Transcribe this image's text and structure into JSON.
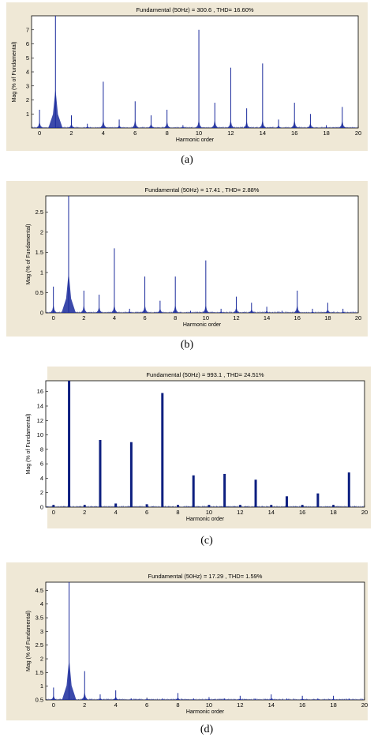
{
  "chart_data": [
    {
      "type": "bar",
      "title": "Fundamental (50Hz) = 300.6 , THD= 16.60%",
      "xlabel": "Harmonic order",
      "ylabel": "Mag (% of Fundamental)",
      "caption": "(a)",
      "xlim": [
        -0.5,
        20
      ],
      "ylim": [
        0,
        8
      ],
      "xticks": [
        "0",
        "2",
        "4",
        "6",
        "8",
        "10",
        "12",
        "14",
        "16",
        "18",
        "20"
      ],
      "yticks": [
        "1",
        "2",
        "3",
        "4",
        "5",
        "6",
        "7"
      ],
      "bar_color": "#1a2a9c",
      "harmonics": [
        {
          "order": 0,
          "value": 1.3
        },
        {
          "order": 1,
          "value": 8.0
        },
        {
          "order": 2,
          "value": 0.9
        },
        {
          "order": 3,
          "value": 0.3
        },
        {
          "order": 4,
          "value": 3.3
        },
        {
          "order": 5,
          "value": 0.6
        },
        {
          "order": 6,
          "value": 1.9
        },
        {
          "order": 7,
          "value": 0.9
        },
        {
          "order": 8,
          "value": 1.3
        },
        {
          "order": 9,
          "value": 0.2
        },
        {
          "order": 10,
          "value": 7.0
        },
        {
          "order": 11,
          "value": 1.8
        },
        {
          "order": 12,
          "value": 4.3
        },
        {
          "order": 13,
          "value": 1.4
        },
        {
          "order": 14,
          "value": 4.6
        },
        {
          "order": 15,
          "value": 0.6
        },
        {
          "order": 16,
          "value": 1.8
        },
        {
          "order": 17,
          "value": 1.0
        },
        {
          "order": 18,
          "value": 0.2
        },
        {
          "order": 19,
          "value": 1.5
        }
      ]
    },
    {
      "type": "bar",
      "title": "Fundamental (50Hz) = 17.41 , THD= 2.88%",
      "xlabel": "Harmonic order",
      "ylabel": "Mag (% of Fundamental)",
      "caption": "(b)",
      "xlim": [
        -0.5,
        20
      ],
      "ylim": [
        0,
        2.9
      ],
      "xticks": [
        "0",
        "2",
        "4",
        "6",
        "8",
        "10",
        "12",
        "14",
        "16",
        "18",
        "20"
      ],
      "yticks": [
        "0",
        "0.5",
        "1",
        "1.5",
        "2",
        "2.5"
      ],
      "bar_color": "#1a2a9c",
      "harmonics": [
        {
          "order": 0,
          "value": 0.65
        },
        {
          "order": 1,
          "value": 2.9
        },
        {
          "order": 2,
          "value": 0.55
        },
        {
          "order": 3,
          "value": 0.45
        },
        {
          "order": 4,
          "value": 1.6
        },
        {
          "order": 5,
          "value": 0.1
        },
        {
          "order": 6,
          "value": 0.9
        },
        {
          "order": 7,
          "value": 0.3
        },
        {
          "order": 8,
          "value": 0.9
        },
        {
          "order": 9,
          "value": 0.05
        },
        {
          "order": 10,
          "value": 1.3
        },
        {
          "order": 11,
          "value": 0.1
        },
        {
          "order": 12,
          "value": 0.4
        },
        {
          "order": 13,
          "value": 0.25
        },
        {
          "order": 14,
          "value": 0.15
        },
        {
          "order": 15,
          "value": 0.05
        },
        {
          "order": 16,
          "value": 0.55
        },
        {
          "order": 17,
          "value": 0.1
        },
        {
          "order": 18,
          "value": 0.25
        },
        {
          "order": 19,
          "value": 0.1
        }
      ]
    },
    {
      "type": "bar",
      "title": "Fundamental (50Hz) = 993.1 , THD= 24.51%",
      "xlabel": "Harmonic order",
      "ylabel": "Mag (% of Fundamental)",
      "caption": "(c)",
      "xlim": [
        -0.5,
        20
      ],
      "ylim": [
        0,
        17.5
      ],
      "xticks": [
        "0",
        "2",
        "4",
        "6",
        "8",
        "10",
        "12",
        "14",
        "16",
        "18",
        "20"
      ],
      "yticks": [
        "0",
        "2",
        "4",
        "6",
        "8",
        "10",
        "12",
        "14",
        "16"
      ],
      "bar_color": "#0d1f80",
      "harmonics": [
        {
          "order": 0,
          "value": 0.3
        },
        {
          "order": 1,
          "value": 17.5
        },
        {
          "order": 2,
          "value": 0.3
        },
        {
          "order": 3,
          "value": 9.3
        },
        {
          "order": 4,
          "value": 0.5
        },
        {
          "order": 5,
          "value": 9.0
        },
        {
          "order": 6,
          "value": 0.4
        },
        {
          "order": 7,
          "value": 15.8
        },
        {
          "order": 8,
          "value": 0.3
        },
        {
          "order": 9,
          "value": 4.4
        },
        {
          "order": 10,
          "value": 0.3
        },
        {
          "order": 11,
          "value": 4.6
        },
        {
          "order": 12,
          "value": 0.3
        },
        {
          "order": 13,
          "value": 3.8
        },
        {
          "order": 14,
          "value": 0.3
        },
        {
          "order": 15,
          "value": 1.5
        },
        {
          "order": 16,
          "value": 0.3
        },
        {
          "order": 17,
          "value": 1.9
        },
        {
          "order": 18,
          "value": 0.3
        },
        {
          "order": 19,
          "value": 4.8
        }
      ]
    },
    {
      "type": "bar",
      "title": "Fundamental (50Hz) = 17.29 , THD= 1.59%",
      "xlabel": "Harmonic order",
      "ylabel": "Mag (% of Fundamental)",
      "caption": "(d)",
      "xlim": [
        -0.5,
        20
      ],
      "ylim": [
        0.5,
        4.8
      ],
      "xticks": [
        "0",
        "2",
        "4",
        "6",
        "8",
        "10",
        "12",
        "14",
        "16",
        "18",
        "20"
      ],
      "yticks": [
        "0.5",
        "1",
        "1.5",
        "2",
        "2.5",
        "3",
        "3.5",
        "4",
        "4.5"
      ],
      "bar_color": "#1a2a9c",
      "harmonics": [
        {
          "order": 0,
          "value": 0.95
        },
        {
          "order": 1,
          "value": 4.8
        },
        {
          "order": 2,
          "value": 1.55
        },
        {
          "order": 3,
          "value": 0.7
        },
        {
          "order": 4,
          "value": 0.85
        },
        {
          "order": 5,
          "value": 0.55
        },
        {
          "order": 6,
          "value": 0.55
        },
        {
          "order": 7,
          "value": 0.55
        },
        {
          "order": 8,
          "value": 0.75
        },
        {
          "order": 9,
          "value": 0.55
        },
        {
          "order": 10,
          "value": 0.6
        },
        {
          "order": 11,
          "value": 0.55
        },
        {
          "order": 12,
          "value": 0.65
        },
        {
          "order": 13,
          "value": 0.55
        },
        {
          "order": 14,
          "value": 0.7
        },
        {
          "order": 15,
          "value": 0.55
        },
        {
          "order": 16,
          "value": 0.65
        },
        {
          "order": 17,
          "value": 0.55
        },
        {
          "order": 18,
          "value": 0.65
        },
        {
          "order": 19,
          "value": 0.55
        }
      ]
    }
  ]
}
